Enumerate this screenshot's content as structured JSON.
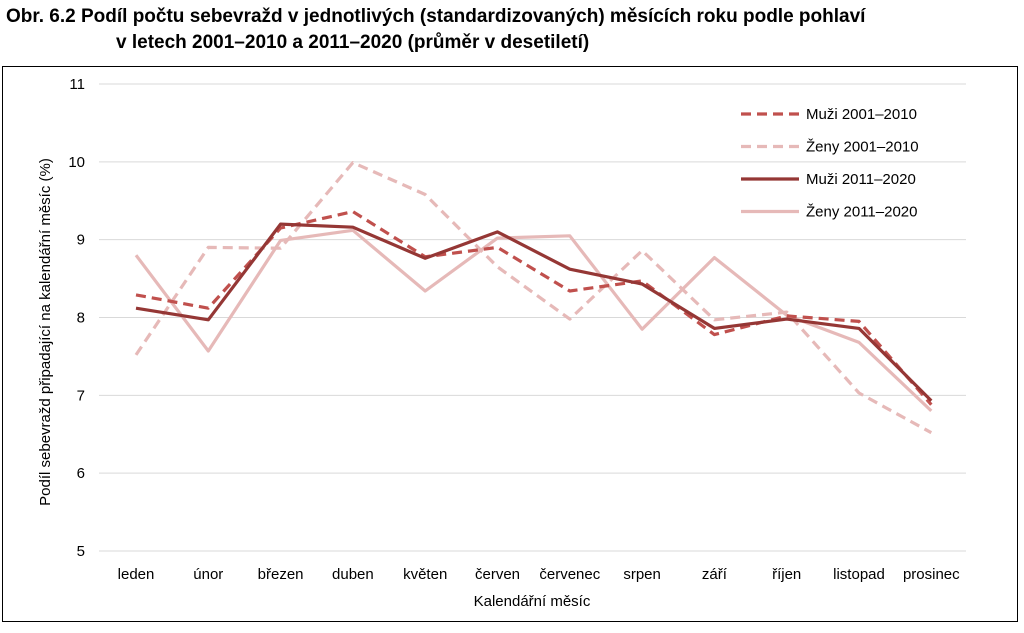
{
  "figure": {
    "title_line1": "Obr. 6.2 Podíl počtu sebevražd v jednotlivých (standardizovaných) měsících roku podle pohlaví",
    "title_line2": "v letech 2001–2010 a 2011–2020 (průměr v desetiletí)"
  },
  "chart_data": {
    "type": "line",
    "title": "Obr. 6.2 Podíl počtu sebevražd v jednotlivých (standardizovaných) měsících roku podle pohlaví v letech 2001–2010 a 2011–2020 (průměr v desetiletí)",
    "xlabel": "Kalendářní měsíc",
    "ylabel": "Podíl sebevražd připadající na kalendářní měsíc (%)",
    "ylim": [
      5,
      11
    ],
    "yticks": [
      5,
      6,
      7,
      8,
      9,
      10,
      11
    ],
    "grid": "horizontal",
    "legend_position": "top-right",
    "categories": [
      "leden",
      "únor",
      "březen",
      "duben",
      "květen",
      "červen",
      "červenec",
      "srpen",
      "září",
      "říjen",
      "listopad",
      "prosinec"
    ],
    "series": [
      {
        "name": "Muži 2001–2010",
        "color": "#c0504d",
        "dashed": true,
        "values": [
          8.29,
          8.12,
          9.15,
          9.36,
          8.78,
          8.9,
          8.34,
          8.47,
          7.78,
          8.02,
          7.95,
          6.88
        ]
      },
      {
        "name": "Ženy 2001–2010",
        "color": "#e6b9b8",
        "dashed": true,
        "values": [
          7.52,
          8.9,
          8.89,
          9.99,
          9.58,
          8.65,
          7.98,
          8.86,
          7.97,
          8.07,
          7.03,
          6.52
        ]
      },
      {
        "name": "Muži 2011–2020",
        "color": "#953735",
        "dashed": false,
        "values": [
          8.12,
          7.97,
          9.2,
          9.16,
          8.76,
          9.1,
          8.62,
          8.43,
          7.86,
          7.98,
          7.86,
          6.93
        ]
      },
      {
        "name": "Ženy 2011–2020",
        "color": "#e6b9b8",
        "dashed": false,
        "values": [
          8.8,
          7.57,
          8.99,
          9.12,
          8.34,
          9.02,
          9.05,
          7.85,
          8.77,
          8.03,
          7.68,
          6.8
        ]
      }
    ]
  }
}
